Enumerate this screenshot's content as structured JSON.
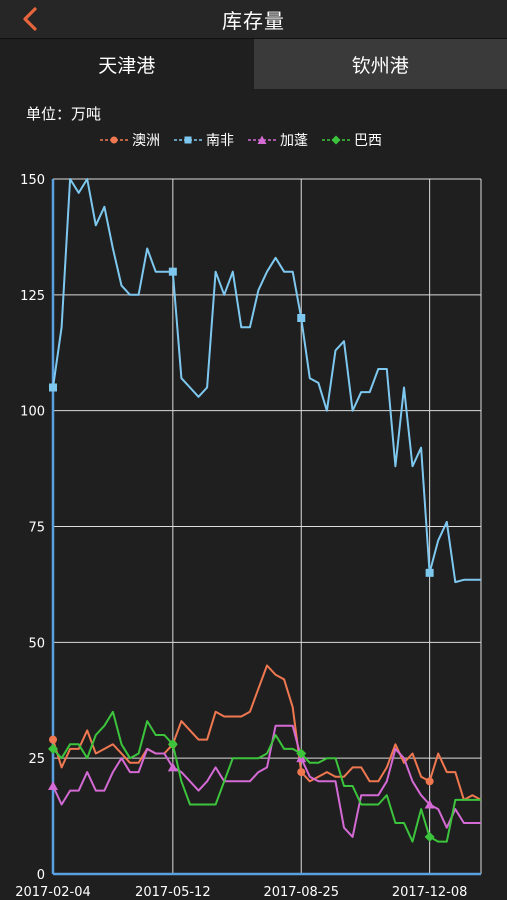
{
  "header": {
    "title": "库存量",
    "back_icon": "chevron-left-icon",
    "accent": "#e8643c"
  },
  "tabs": [
    {
      "label": "天津港",
      "active": true
    },
    {
      "label": "钦州港",
      "active": false
    }
  ],
  "unit_label": "单位：万吨",
  "chart_data": {
    "type": "line",
    "title": "",
    "xlabel": "",
    "ylabel": "",
    "ylim": [
      0,
      150
    ],
    "yticks": [
      0,
      25,
      50,
      75,
      100,
      125,
      150
    ],
    "xticks": [
      "2017-02-04",
      "2017-05-12",
      "2017-08-25",
      "2017-12-08"
    ],
    "grid": true,
    "legend_position": "top",
    "x": [
      "2017-02-04",
      "2017-02-10",
      "2017-02-17",
      "2017-02-24",
      "2017-03-03",
      "2017-03-10",
      "2017-03-17",
      "2017-03-24",
      "2017-03-31",
      "2017-04-07",
      "2017-04-14",
      "2017-04-21",
      "2017-04-28",
      "2017-05-05",
      "2017-05-12",
      "2017-05-19",
      "2017-05-26",
      "2017-06-02",
      "2017-06-09",
      "2017-06-16",
      "2017-06-23",
      "2017-06-30",
      "2017-07-07",
      "2017-07-14",
      "2017-07-21",
      "2017-07-28",
      "2017-08-04",
      "2017-08-11",
      "2017-08-18",
      "2017-08-25",
      "2017-09-01",
      "2017-09-08",
      "2017-09-15",
      "2017-09-22",
      "2017-09-29",
      "2017-10-06",
      "2017-10-13",
      "2017-10-20",
      "2017-10-27",
      "2017-11-03",
      "2017-11-10",
      "2017-11-17",
      "2017-11-24",
      "2017-12-01",
      "2017-12-08",
      "2017-12-15",
      "2017-12-22",
      "2017-12-29",
      "2018-01-05",
      "2018-01-12",
      "2018-01-19"
    ],
    "series": [
      {
        "name": "澳洲",
        "color": "#f07850",
        "marker": "circle",
        "values": [
          29,
          23,
          27,
          27,
          31,
          26,
          27,
          28,
          26,
          24,
          24,
          27,
          26,
          26,
          28,
          33,
          31,
          29,
          29,
          35,
          34,
          34,
          34,
          35,
          40,
          45,
          43,
          42,
          36,
          22,
          20,
          21,
          22,
          21,
          21,
          23,
          23,
          20,
          20,
          23,
          28,
          24,
          26,
          21,
          20,
          26,
          22,
          22,
          16,
          17,
          16
        ]
      },
      {
        "name": "南非",
        "color": "#7ec8f0",
        "marker": "square",
        "values": [
          105,
          118,
          150,
          147,
          150,
          140,
          144,
          135,
          127,
          125,
          125,
          135,
          130,
          130,
          130,
          107,
          105,
          103,
          105,
          130,
          125,
          130,
          118,
          118,
          126,
          130,
          133,
          130,
          130,
          120,
          107,
          106,
          100,
          113,
          115,
          100,
          104,
          104,
          109,
          109,
          88,
          105,
          88,
          92,
          65,
          72,
          76,
          63,
          63.5,
          63.5,
          63.5
        ]
      },
      {
        "name": "加蓬",
        "color": "#d46ad4",
        "marker": "triangle",
        "values": [
          19,
          15,
          18,
          18,
          22,
          18,
          18,
          22,
          25,
          22,
          22,
          27,
          26,
          26,
          23,
          22,
          20,
          18,
          20,
          23,
          20,
          20,
          20,
          20,
          22,
          23,
          32,
          32,
          32,
          25,
          21,
          20,
          20,
          20,
          10,
          8,
          17,
          17,
          17,
          20,
          27,
          25,
          20,
          17,
          15,
          14,
          10,
          14,
          11,
          11,
          11
        ]
      },
      {
        "name": "巴西",
        "color": "#3cc43c",
        "marker": "diamond",
        "values": [
          27,
          25,
          28,
          28,
          25,
          30,
          32,
          35,
          28,
          25,
          26,
          33,
          30,
          30,
          28,
          20,
          15,
          15,
          15,
          15,
          20,
          25,
          25,
          25,
          25,
          26,
          30,
          27,
          27,
          26,
          24,
          24,
          25,
          25,
          19,
          19,
          15,
          15,
          15,
          17,
          11,
          11,
          7,
          14,
          8,
          7,
          7,
          16,
          16,
          16,
          16
        ]
      }
    ]
  }
}
